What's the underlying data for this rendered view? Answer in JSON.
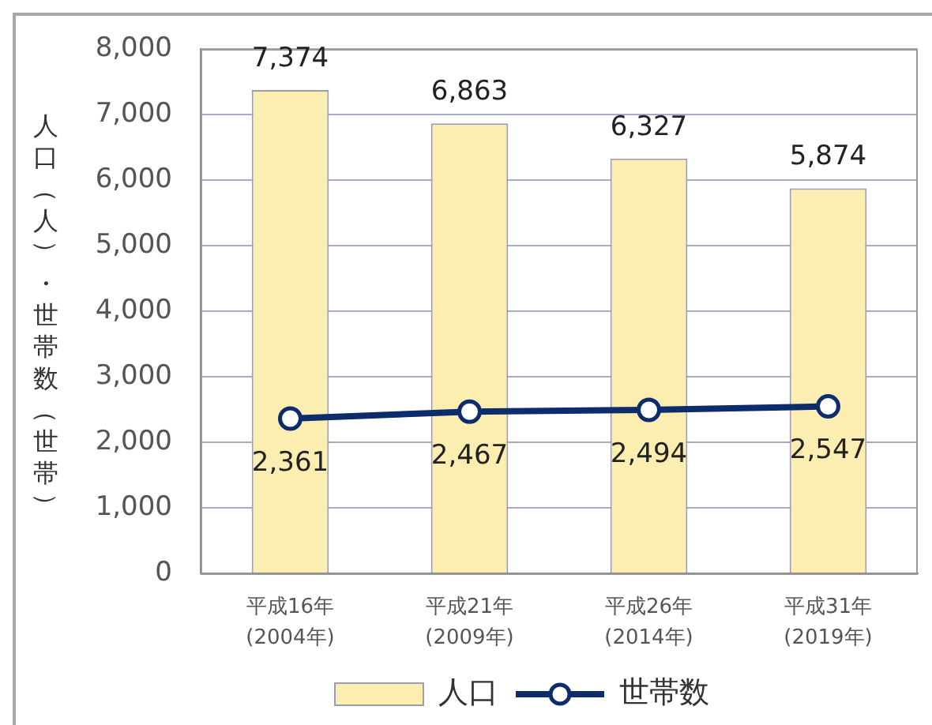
{
  "chart_data": {
    "type": "bar",
    "ylabel": "人口（人）・世帯数（世帯）",
    "categories": [
      "平成16年\n(2004年)",
      "平成21年\n(2009年)",
      "平成26年\n(2014年)",
      "平成31年\n(2019年)"
    ],
    "series": [
      {
        "name": "人口",
        "color": "#fbeeb0",
        "values": [
          7374,
          6863,
          6327,
          5874
        ],
        "value_labels": [
          "7,374",
          "6,863",
          "6,327",
          "5,874"
        ]
      },
      {
        "name": "世帯数",
        "type": "line",
        "color": "#0c2c6c",
        "values": [
          2361,
          2467,
          2494,
          2547
        ],
        "value_labels": [
          "2,361",
          "2,467",
          "2,494",
          "2,547"
        ]
      }
    ],
    "ylim": [
      0,
      8000
    ],
    "yticks": [
      0,
      {
        "value": 1000,
        "label": "1,000"
      },
      {
        "value": 2000,
        "label": "2,000"
      },
      {
        "value": 3000,
        "label": "3,000"
      },
      {
        "value": 4000,
        "label": "4,000"
      },
      {
        "value": 5000,
        "label": "5,000"
      },
      {
        "value": 6000,
        "label": "6,000"
      },
      {
        "value": 7000,
        "label": "7,000"
      },
      {
        "value": 8000,
        "label": "8,000"
      }
    ],
    "grid": "y",
    "legend": "bottom",
    "marker": "circle"
  }
}
